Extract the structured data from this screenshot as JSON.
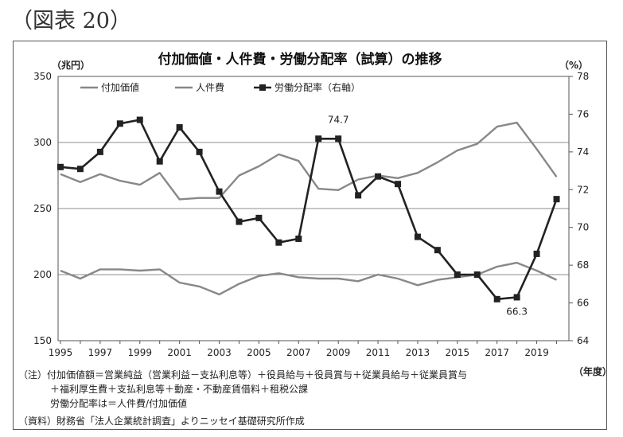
{
  "figure_label": "（図表 20）",
  "chart_data": {
    "type": "line",
    "title": "付加価値・人件費・労働分配率（試算）の推移",
    "left_unit": "（兆円）",
    "right_unit": "（%）",
    "x_unit": "（年度）",
    "x": [
      1995,
      1996,
      1997,
      1998,
      1999,
      2000,
      2001,
      2002,
      2003,
      2004,
      2005,
      2006,
      2007,
      2008,
      2009,
      2010,
      2011,
      2012,
      2013,
      2014,
      2015,
      2016,
      2017,
      2018,
      2019,
      2020
    ],
    "x_ticks": [
      "1995",
      "1997",
      "1999",
      "2001",
      "2003",
      "2005",
      "2007",
      "2009",
      "2011",
      "2013",
      "2015",
      "2017",
      "2019"
    ],
    "y_left": {
      "min": 150,
      "max": 350,
      "ticks": [
        "150",
        "200",
        "250",
        "300",
        "350"
      ]
    },
    "y_right": {
      "min": 64,
      "max": 78,
      "ticks": [
        "64",
        "66",
        "68",
        "70",
        "72",
        "74",
        "76",
        "78"
      ]
    },
    "grid": true,
    "legend_position": "top",
    "series": [
      {
        "name": "付加価値",
        "axis": "left",
        "color": "#888888",
        "marker": "none",
        "values": [
          276,
          270,
          276,
          271,
          268,
          277,
          257,
          258,
          258,
          275,
          282,
          291,
          286,
          265,
          264,
          272,
          275,
          273,
          277,
          285,
          294,
          299,
          312,
          315,
          295,
          274
        ]
      },
      {
        "name": "人件費",
        "axis": "left",
        "color": "#888888",
        "marker": "none",
        "values": [
          203,
          197,
          204,
          204,
          203,
          204,
          194,
          191,
          185,
          193,
          199,
          201,
          198,
          197,
          197,
          195,
          200,
          197,
          192,
          196,
          198,
          200,
          206,
          209,
          203,
          196
        ]
      },
      {
        "name": "労働分配率（右軸）",
        "axis": "right",
        "color": "#222222",
        "marker": "square",
        "values": [
          73.2,
          73.1,
          74.0,
          75.5,
          75.7,
          73.5,
          75.3,
          74.0,
          71.9,
          70.3,
          70.5,
          69.2,
          69.4,
          74.7,
          74.7,
          71.7,
          72.7,
          72.3,
          69.5,
          68.8,
          67.5,
          67.5,
          66.2,
          66.3,
          68.6,
          71.5
        ]
      }
    ],
    "annotations": [
      {
        "x": 2009,
        "series": 2,
        "text": "74.7",
        "position": "above"
      },
      {
        "x": 2018,
        "series": 2,
        "text": "66.3",
        "position": "below"
      }
    ]
  },
  "notes": [
    "（注）付加価値額＝営業純益（営業利益－支払利息等）＋役員給与＋役員賞与＋従業員給与＋従業員賞与",
    "＋福利厚生費＋支払利息等＋動産・不動産賃借料＋租税公課",
    "労働分配率は＝人件費/付加価値",
    "（資料）財務省「法人企業統計調査」よりニッセイ基礎研究所作成"
  ]
}
